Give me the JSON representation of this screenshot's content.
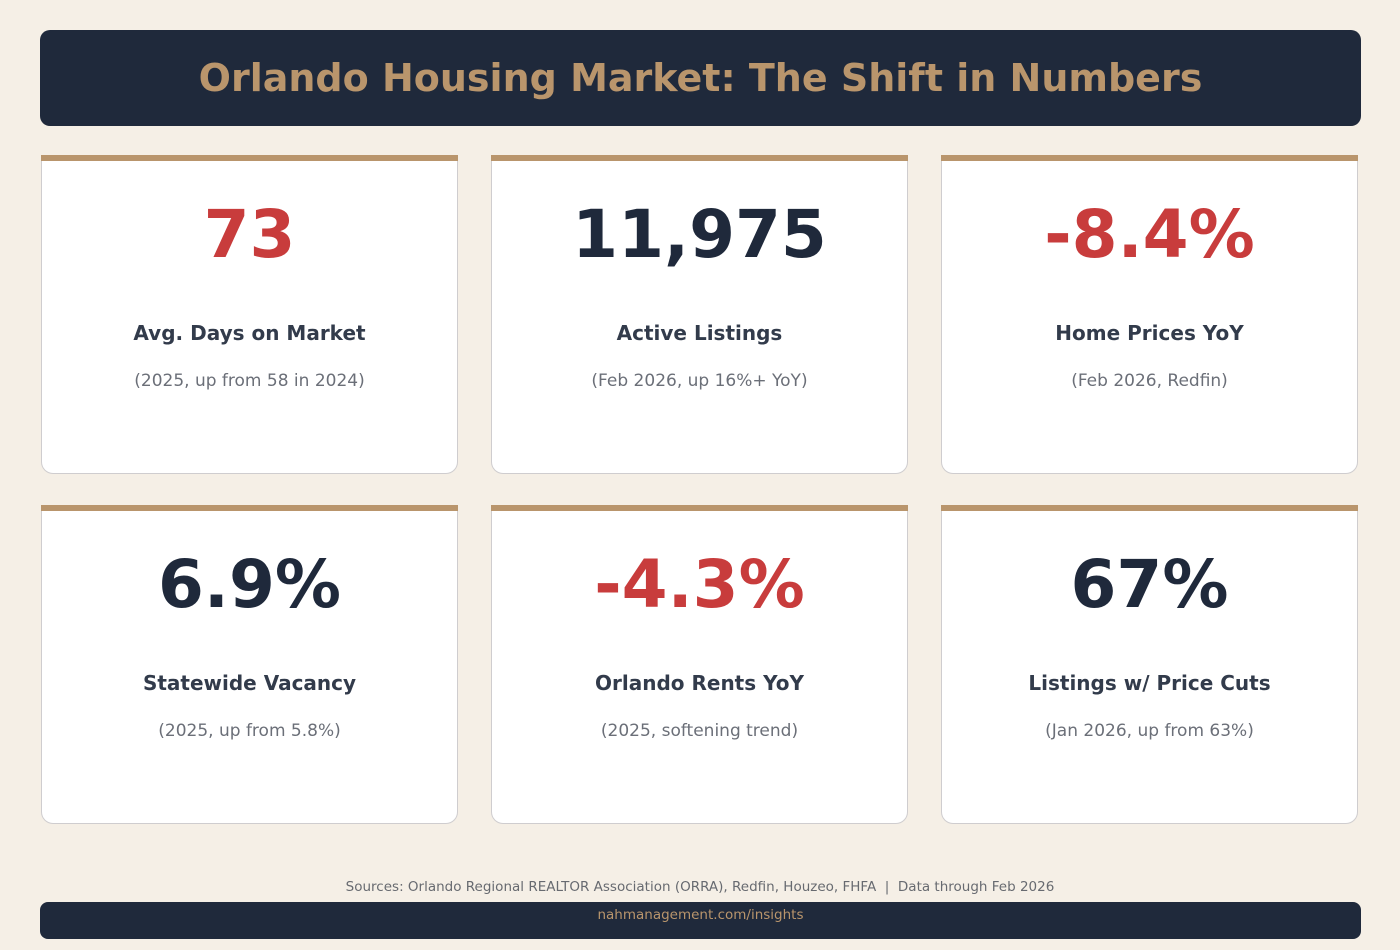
{
  "header": {
    "title": "Orlando Housing Market: The Shift in Numbers"
  },
  "colors": {
    "navy": "#1f293b",
    "gold": "#b9956c",
    "red": "#c83c3c",
    "background": "#f5efe6"
  },
  "cards": [
    {
      "value": "73",
      "value_color": "#c83c3c",
      "label": "Avg. Days on Market",
      "note": "(2025, up from 58 in 2024)"
    },
    {
      "value": "11,975",
      "value_color": "#1f293b",
      "label": "Active Listings",
      "note": "(Feb 2026, up 16%+ YoY)"
    },
    {
      "value": "-8.4%",
      "value_color": "#c83c3c",
      "label": "Home Prices YoY",
      "note": "(Feb 2026, Redfin)"
    },
    {
      "value": "6.9%",
      "value_color": "#1f293b",
      "label": "Statewide Vacancy",
      "note": "(2025, up from 5.8%)"
    },
    {
      "value": "-4.3%",
      "value_color": "#c83c3c",
      "label": "Orlando Rents YoY",
      "note": "(2025, softening trend)"
    },
    {
      "value": "67%",
      "value_color": "#1f293b",
      "label": "Listings w/ Price Cuts",
      "note": "(Jan 2026, up from 63%)"
    }
  ],
  "footer": {
    "sources": "Sources: Orlando Regional REALTOR Association (ORRA), Redfin, Houzeo, FHFA  |  Data through Feb 2026",
    "link": "nahmanagement.com/insights"
  }
}
